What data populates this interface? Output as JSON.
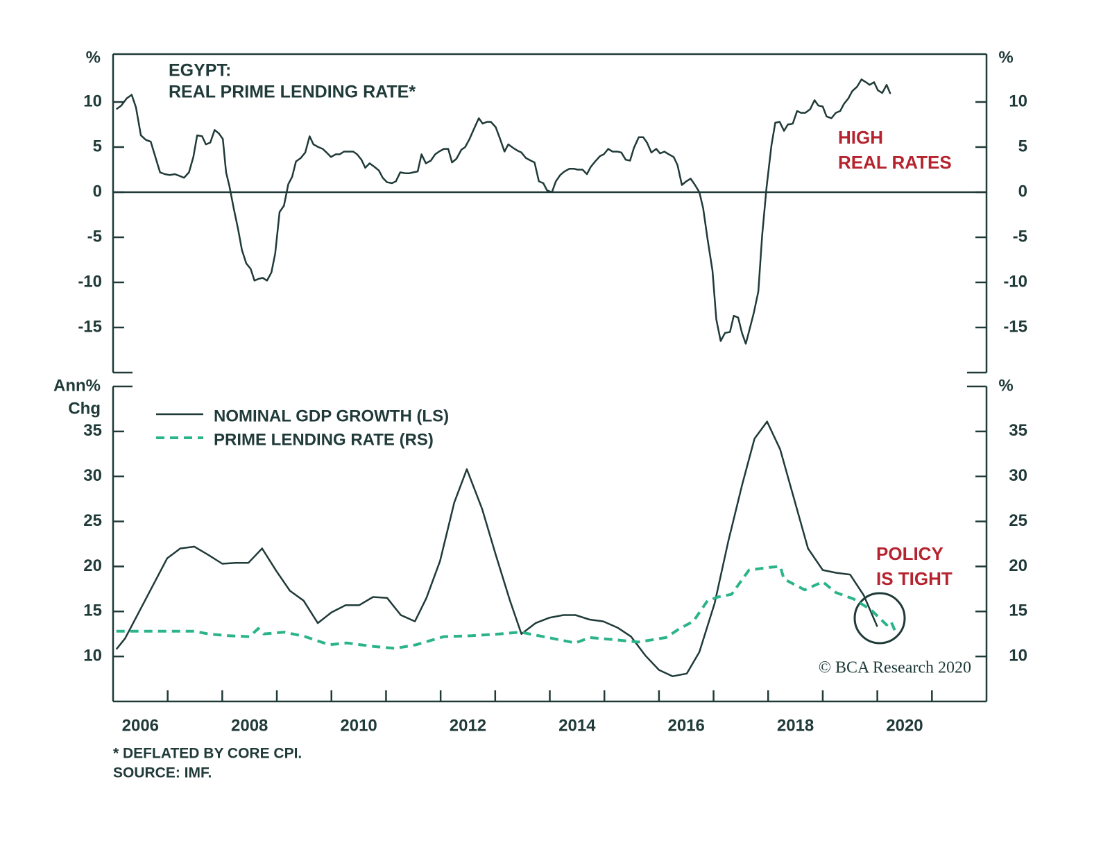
{
  "chart_data": [
    {
      "type": "line",
      "title": [
        "EGYPT:",
        "REAL PRIME LENDING RATE*"
      ],
      "ylabel": "%",
      "y2label": "%",
      "xlim": [
        2006,
        2022
      ],
      "ylim": [
        -20,
        15
      ],
      "yticks": [
        10,
        5,
        0,
        -5,
        -10,
        -15
      ],
      "y2lim": [
        -20,
        15
      ],
      "y2ticks": [
        10,
        5,
        0,
        -5,
        -10,
        -15
      ],
      "zero_line": true,
      "annotation": [
        "HIGH",
        "REAL RATES"
      ],
      "series": [
        {
          "color": "#1f3a38",
          "x": [
            2006.06,
            2006.15,
            2006.25,
            2006.34,
            2006.42,
            2006.51,
            2006.6,
            2006.69,
            2006.78,
            2006.86,
            2006.95,
            2007.04,
            2007.13,
            2007.22,
            2007.3,
            2007.39,
            2007.47,
            2007.54,
            2007.63,
            2007.7,
            2007.78,
            2007.86,
            2007.94,
            2008.01,
            2008.07,
            2008.13,
            2008.21,
            2008.29,
            2008.36,
            2008.44,
            2008.52,
            2008.59,
            2008.67,
            2008.74,
            2008.82,
            2008.9,
            2008.97,
            2009.05,
            2009.13,
            2009.21,
            2009.28,
            2009.35,
            2009.44,
            2009.52,
            2009.6,
            2009.67,
            2009.76,
            2009.84,
            2009.91,
            2009.99,
            2010.08,
            2010.15,
            2010.23,
            2010.32,
            2010.4,
            2010.47,
            2010.55,
            2010.62,
            2010.7,
            2010.79,
            2010.87,
            2010.94,
            2011.02,
            2011.11,
            2011.18,
            2011.26,
            2011.35,
            2011.43,
            2011.5,
            2011.58,
            2011.65,
            2011.73,
            2011.82,
            2011.9,
            2011.97,
            2012.06,
            2012.14,
            2012.21,
            2012.29,
            2012.38,
            2012.45,
            2012.53,
            2012.61,
            2012.7,
            2012.77,
            2012.85,
            2012.92,
            2013.01,
            2013.09,
            2013.17,
            2013.24,
            2013.33,
            2013.41,
            2013.48,
            2013.56,
            2013.65,
            2013.72,
            2013.8,
            2013.88,
            2013.95,
            2014.04,
            2014.11,
            2014.19,
            2014.27,
            2014.36,
            2014.44,
            2014.51,
            2014.6,
            2014.68,
            2014.75,
            2014.83,
            2014.92,
            2014.99,
            2015.07,
            2015.15,
            2015.24,
            2015.31,
            2015.39,
            2015.47,
            2015.54,
            2015.63,
            2015.71,
            2015.78,
            2015.86,
            2015.95,
            2016.02,
            2016.1,
            2016.18,
            2016.27,
            2016.34,
            2016.42,
            2016.5,
            2016.58,
            2016.66,
            2016.74,
            2016.81,
            2016.89,
            2016.98,
            2017.05,
            2017.13,
            2017.21,
            2017.3,
            2017.37,
            2017.45,
            2017.52,
            2017.59,
            2017.66,
            2017.74,
            2017.82,
            2017.89,
            2017.97,
            2018.06,
            2018.13,
            2018.21,
            2018.29,
            2018.36,
            2018.45,
            2018.53,
            2018.6,
            2018.68,
            2018.77,
            2018.85,
            2018.92,
            2019.0,
            2019.07,
            2019.16,
            2019.24,
            2019.32,
            2019.39,
            2019.47,
            2019.54,
            2019.63,
            2019.71,
            2019.79,
            2019.86,
            2019.94,
            2020.01,
            2020.09,
            2020.17,
            2020.24
          ],
          "values": [
            9.2,
            9.6,
            10.4,
            10.8,
            9.4,
            6.3,
            5.8,
            5.6,
            3.8,
            2.2,
            2.0,
            1.9,
            2.0,
            1.8,
            1.6,
            2.2,
            3.9,
            6.3,
            6.2,
            5.3,
            5.5,
            6.9,
            6.5,
            5.9,
            2.2,
            0.7,
            -1.8,
            -4.1,
            -6.4,
            -7.9,
            -8.5,
            -9.8,
            -9.6,
            -9.5,
            -9.8,
            -8.9,
            -6.8,
            -2.2,
            -1.5,
            0.9,
            1.7,
            3.4,
            3.8,
            4.4,
            6.2,
            5.3,
            5.0,
            4.8,
            4.4,
            3.9,
            4.2,
            4.2,
            4.5,
            4.5,
            4.5,
            4.2,
            3.6,
            2.7,
            3.2,
            2.8,
            2.4,
            1.6,
            1.1,
            1.0,
            1.2,
            2.2,
            2.1,
            2.1,
            2.2,
            2.3,
            4.2,
            3.2,
            3.5,
            4.2,
            4.5,
            4.8,
            4.8,
            3.3,
            3.7,
            4.7,
            5.0,
            5.9,
            7.0,
            8.2,
            7.6,
            7.8,
            7.8,
            7.2,
            5.9,
            4.5,
            5.3,
            4.9,
            4.6,
            4.4,
            3.8,
            3.5,
            3.3,
            1.2,
            1.0,
            0.2,
            0.0,
            1.2,
            1.9,
            2.3,
            2.6,
            2.6,
            2.5,
            2.5,
            2.0,
            2.8,
            3.4,
            4.0,
            4.2,
            4.8,
            4.5,
            4.5,
            4.4,
            3.6,
            3.5,
            4.9,
            6.1,
            6.1,
            5.5,
            4.4,
            4.8,
            4.3,
            4.5,
            4.2,
            3.9,
            3.0,
            0.8,
            1.2,
            1.5,
            0.8,
            0.0,
            -1.8,
            -5.2,
            -8.7,
            -14.1,
            -16.5,
            -15.6,
            -15.5,
            -13.7,
            -13.9,
            -15.6,
            -16.8,
            -15.2,
            -13.3,
            -11.0,
            -4.8,
            0.5,
            5.2,
            7.7,
            7.8,
            6.8,
            7.5,
            7.6,
            9.0,
            8.8,
            8.8,
            9.2,
            10.2,
            9.6,
            9.5,
            8.4,
            8.2,
            8.8,
            9.0,
            9.8,
            10.4,
            11.2,
            11.7,
            12.5,
            12.2,
            11.9,
            12.2,
            11.3,
            11.0,
            11.9,
            10.9
          ]
        }
      ]
    },
    {
      "type": "line",
      "ylabel": [
        "Ann%",
        "Chg"
      ],
      "y2label": "%",
      "xlim": [
        2006,
        2022
      ],
      "xticks": [
        2007,
        2008,
        2009,
        2010,
        2011,
        2012,
        2013,
        2014,
        2015,
        2016,
        2017,
        2018,
        2019,
        2020,
        2021
      ],
      "xlabels": [
        {
          "value": 2006.5,
          "label": "2006"
        },
        {
          "value": 2008.5,
          "label": "2008"
        },
        {
          "value": 2010.5,
          "label": "2010"
        },
        {
          "value": 2012.5,
          "label": "2012"
        },
        {
          "value": 2014.5,
          "label": "2014"
        },
        {
          "value": 2016.5,
          "label": "2016"
        },
        {
          "value": 2018.5,
          "label": "2018"
        },
        {
          "value": 2020.5,
          "label": "2020"
        }
      ],
      "ylim": [
        5,
        40
      ],
      "yticks": [
        35,
        30,
        25,
        20,
        15,
        10
      ],
      "y2lim": [
        5,
        40
      ],
      "y2ticks": [
        35,
        30,
        25,
        20,
        15,
        10
      ],
      "legend": "upper left",
      "annotation": [
        "POLICY",
        "IS TIGHT"
      ],
      "credit": "© BCA Research 2020",
      "notes": [
        "* DEFLATED BY CORE CPI.",
        "SOURCE: IMF."
      ],
      "series": [
        {
          "name": "NOMINAL GDP GROWTH (LS)",
          "color": "#1f3a38",
          "dashed": false,
          "x": [
            2006.06,
            2006.22,
            2006.99,
            2007.23,
            2007.49,
            2007.74,
            2008.0,
            2008.25,
            2008.48,
            2008.73,
            2008.99,
            2009.24,
            2009.49,
            2009.75,
            2010.0,
            2010.26,
            2010.51,
            2010.76,
            2011.02,
            2011.27,
            2011.53,
            2011.74,
            2011.99,
            2012.25,
            2012.48,
            2012.76,
            2013.01,
            2013.27,
            2013.48,
            2013.74,
            2013.99,
            2014.25,
            2014.47,
            2014.73,
            2014.98,
            2015.24,
            2015.49,
            2015.75,
            2016.0,
            2016.25,
            2016.51,
            2016.74,
            2017.02,
            2017.27,
            2017.52,
            2017.75,
            2017.98,
            2018.22,
            2018.48,
            2018.73,
            2019.0,
            2019.24,
            2019.5,
            2019.75,
            2020.0
          ],
          "values": [
            10.8,
            12.0,
            20.9,
            22.0,
            22.2,
            21.3,
            20.3,
            20.4,
            20.4,
            22.0,
            19.5,
            17.3,
            16.2,
            13.7,
            14.9,
            15.7,
            15.7,
            16.6,
            16.5,
            14.6,
            13.9,
            16.5,
            20.6,
            27.1,
            30.8,
            26.4,
            21.3,
            16.2,
            12.5,
            13.7,
            14.3,
            14.6,
            14.6,
            14.1,
            13.9,
            13.2,
            12.2,
            10.1,
            8.5,
            7.8,
            8.1,
            10.5,
            15.9,
            22.8,
            29.0,
            34.2,
            36.1,
            33.0,
            27.4,
            22.0,
            19.6,
            19.3,
            19.1,
            16.8,
            13.3
          ]
        },
        {
          "name": "PRIME LENDING RATE (RS)",
          "color": "#2bb38a",
          "dashed": true,
          "axis": "y2",
          "x": [
            2006.06,
            2006.47,
            2006.98,
            2007.49,
            2007.74,
            2008.12,
            2008.5,
            2008.66,
            2008.76,
            2009.14,
            2009.52,
            2009.96,
            2010.28,
            2010.79,
            2011.17,
            2011.55,
            2012.06,
            2012.57,
            2013.08,
            2013.46,
            2013.97,
            2014.47,
            2014.73,
            2015.11,
            2015.62,
            2016.13,
            2016.38,
            2016.63,
            2016.89,
            2017.08,
            2017.33,
            2017.65,
            2018.03,
            2018.22,
            2018.29,
            2018.67,
            2019.0,
            2019.24,
            2019.56,
            2019.88,
            2020.07,
            2020.17,
            2020.25,
            2020.32
          ],
          "values": [
            12.8,
            12.8,
            12.8,
            12.8,
            12.5,
            12.3,
            12.2,
            13.1,
            12.5,
            12.7,
            12.2,
            11.3,
            11.5,
            11.1,
            10.9,
            11.3,
            12.2,
            12.3,
            12.5,
            12.7,
            12.1,
            11.5,
            12.1,
            11.9,
            11.6,
            12.1,
            13.1,
            13.9,
            16.2,
            16.6,
            16.9,
            19.6,
            19.9,
            20.0,
            18.6,
            17.4,
            18.3,
            17.1,
            16.4,
            15.2,
            14.1,
            13.5,
            13.9,
            12.9
          ]
        }
      ]
    }
  ]
}
